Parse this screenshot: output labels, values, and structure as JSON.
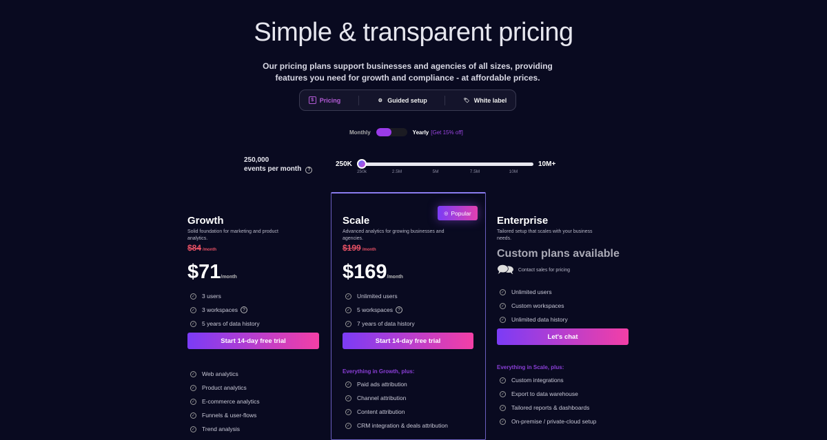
{
  "header": {
    "title": "Simple & transparent pricing",
    "subtitle_line1": "Our pricing plans support businesses and agencies of all sizes, providing",
    "subtitle_line2": "features you need for growth and compliance - at affordable prices."
  },
  "tabs": [
    {
      "label": "Pricing",
      "icon": "dollar-icon",
      "active": true
    },
    {
      "label": "Guided setup",
      "icon": "gear-icon"
    },
    {
      "label": "White label",
      "icon": "tag-icon"
    }
  ],
  "billing": {
    "monthly": "Monthly",
    "yearly": "Yearly",
    "discount": "[Get 15% off]",
    "selected": "Monthly"
  },
  "events": {
    "value": "250,000",
    "label": "events per month",
    "slider_min_label": "250K",
    "slider_max_label": "10M+",
    "ticks": [
      "250k",
      "2.5M",
      "5M",
      "7.5M",
      "10M"
    ],
    "slider_value": "250K"
  },
  "colors": {
    "accent_start": "#7b3cf6",
    "accent_end": "#f33fa6",
    "old_price": "#e65064",
    "background": "#090a20"
  },
  "plans": [
    {
      "name": "Growth",
      "desc": "Solid foundation for marketing and product analytics.",
      "old_price": "$84",
      "old_unit": "/month",
      "price": "$71",
      "unit": "/month",
      "features": [
        "3 users",
        "3 workspaces",
        "5 years of data history"
      ],
      "cta": "Start 14-day free trial",
      "extras_title": "",
      "extras": [
        "Web analytics",
        "Product analytics",
        "E-commerce analytics",
        "Funnels & user-flows",
        "Trend analysis"
      ]
    },
    {
      "name": "Scale",
      "badge": "Popular",
      "desc": "Advanced analytics for growing businesses and agencies.",
      "old_price": "$199",
      "old_unit": "/month",
      "price": "$169",
      "unit": "/month",
      "features": [
        "Unlimited users",
        "5 workspaces",
        "7 years of data history"
      ],
      "cta": "Start 14-day free trial",
      "extras_title": "Everything in Growth, plus:",
      "extras": [
        "Paid ads attribution",
        "Channel attribution",
        "Content attribution",
        "CRM integration & deals attribution"
      ]
    },
    {
      "name": "Enterprise",
      "desc": "Tailored setup that scales with your business needs.",
      "custom": "Custom plans available",
      "contact": "Contact sales for pricing",
      "features": [
        "Unlimited users",
        "Custom workspaces",
        "Unlimited data history"
      ],
      "cta": "Let's chat",
      "extras_title": "Everything in Scale, plus:",
      "extras": [
        "Custom integrations",
        "Export to data warehouse",
        "Tailored reports & dashboards",
        "On-premise / private-cloud setup"
      ]
    }
  ]
}
